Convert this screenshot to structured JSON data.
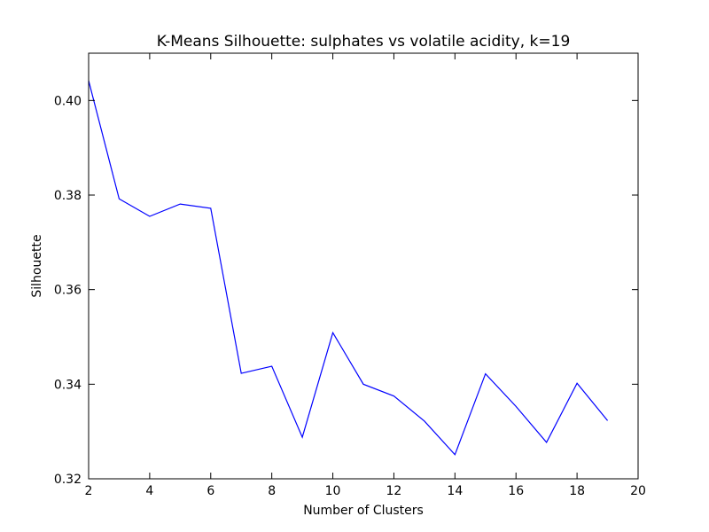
{
  "chart_data": {
    "type": "line",
    "title": "K-Means Silhouette: sulphates vs volatile acidity, k=19",
    "xlabel": "Number of Clusters",
    "ylabel": "Silhouette",
    "xlim": [
      2,
      20
    ],
    "ylim": [
      0.32,
      0.41
    ],
    "xticks": [
      2,
      4,
      6,
      8,
      10,
      12,
      14,
      16,
      18,
      20
    ],
    "yticks": [
      0.32,
      0.34,
      0.36,
      0.38,
      0.4
    ],
    "ytick_labels": [
      "0.32",
      "0.34",
      "0.36",
      "0.38",
      "0.40"
    ],
    "grid": false,
    "legend": "none",
    "line_color": "#0000ff",
    "series": [
      {
        "x": [
          2,
          3,
          4,
          5,
          6,
          7,
          8,
          9,
          10,
          11,
          12,
          13,
          14,
          15,
          16,
          17,
          18,
          19
        ],
        "values": [
          0.4042,
          0.3792,
          0.3755,
          0.3781,
          0.3772,
          0.3423,
          0.3438,
          0.3288,
          0.3509,
          0.34,
          0.3375,
          0.3322,
          0.3251,
          0.3422,
          0.3353,
          0.3277,
          0.3402,
          0.3323
        ]
      }
    ]
  }
}
